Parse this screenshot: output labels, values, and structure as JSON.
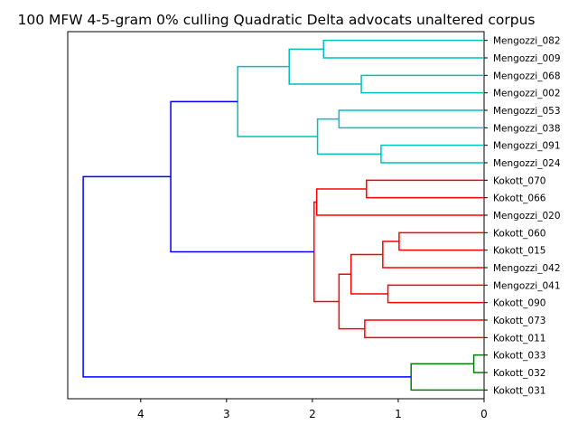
{
  "chart_data": {
    "type": "dendrogram",
    "title": "100 MFW 4-5-gram 0% culling Quadratic Delta advocats unaltered corpus",
    "orientation": "left",
    "xlim": [
      4.85,
      0
    ],
    "xticks": [
      4,
      3,
      2,
      1,
      0
    ],
    "leaves": [
      "Mengozzi_082",
      "Mengozzi_009",
      "Mengozzi_068",
      "Mengozzi_002",
      "Mengozzi_053",
      "Mengozzi_038",
      "Mengozzi_091",
      "Mengozzi_024",
      "Kokott_070",
      "Kokott_066",
      "Mengozzi_020",
      "Kokott_060",
      "Kokott_015",
      "Mengozzi_042",
      "Mengozzi_041",
      "Kokott_090",
      "Kokott_073",
      "Kokott_011",
      "Kokott_033",
      "Kokott_032",
      "Kokott_031"
    ],
    "links": [
      {
        "a": "Mengozzi_082",
        "b": "Mengozzi_009",
        "h": 1.87,
        "id": "c1",
        "color": "#00bfbf"
      },
      {
        "a": "Mengozzi_068",
        "b": "Mengozzi_002",
        "h": 1.43,
        "id": "c2",
        "color": "#00bfbf"
      },
      {
        "a": "c1",
        "b": "c2",
        "h": 2.27,
        "id": "c3",
        "color": "#00bfbf"
      },
      {
        "a": "Mengozzi_053",
        "b": "Mengozzi_038",
        "h": 1.69,
        "id": "c4",
        "color": "#00bfbf"
      },
      {
        "a": "Mengozzi_091",
        "b": "Mengozzi_024",
        "h": 1.2,
        "id": "c5",
        "color": "#00bfbf"
      },
      {
        "a": "c4",
        "b": "c5",
        "h": 1.94,
        "id": "c6",
        "color": "#00bfbf"
      },
      {
        "a": "c3",
        "b": "c6",
        "h": 2.87,
        "id": "c7",
        "color": "#00bfbf"
      },
      {
        "a": "Kokott_070",
        "b": "Kokott_066",
        "h": 1.37,
        "id": "r1",
        "color": "#ff0000"
      },
      {
        "a": "r1",
        "b": "Mengozzi_020",
        "h": 1.95,
        "id": "r2",
        "color": "#ff0000"
      },
      {
        "a": "Kokott_060",
        "b": "Kokott_015",
        "h": 0.99,
        "id": "r3",
        "color": "#ff0000"
      },
      {
        "a": "r3",
        "b": "Mengozzi_042",
        "h": 1.18,
        "id": "r4",
        "color": "#ff0000"
      },
      {
        "a": "Mengozzi_041",
        "b": "Kokott_090",
        "h": 1.12,
        "id": "r5",
        "color": "#ff0000"
      },
      {
        "a": "r4",
        "b": "r5",
        "h": 1.55,
        "id": "r6",
        "color": "#ff0000"
      },
      {
        "a": "Kokott_073",
        "b": "Kokott_011",
        "h": 1.39,
        "id": "r7",
        "color": "#ff0000"
      },
      {
        "a": "r6",
        "b": "r7",
        "h": 1.69,
        "id": "r8",
        "color": "#ff0000"
      },
      {
        "a": "r2",
        "b": "r8",
        "h": 1.98,
        "id": "r9",
        "color": "#ff0000"
      },
      {
        "a": "c7",
        "b": "r9",
        "h": 3.65,
        "id": "b1",
        "color": "#0000ff"
      },
      {
        "a": "Kokott_033",
        "b": "Kokott_032",
        "h": 0.12,
        "id": "g1",
        "color": "#008000"
      },
      {
        "a": "g1",
        "b": "Kokott_031",
        "h": 0.85,
        "id": "g2",
        "color": "#008000"
      },
      {
        "a": "b1",
        "b": "g2",
        "h": 4.67,
        "id": "b2",
        "color": "#0000ff"
      }
    ],
    "grid": false
  }
}
